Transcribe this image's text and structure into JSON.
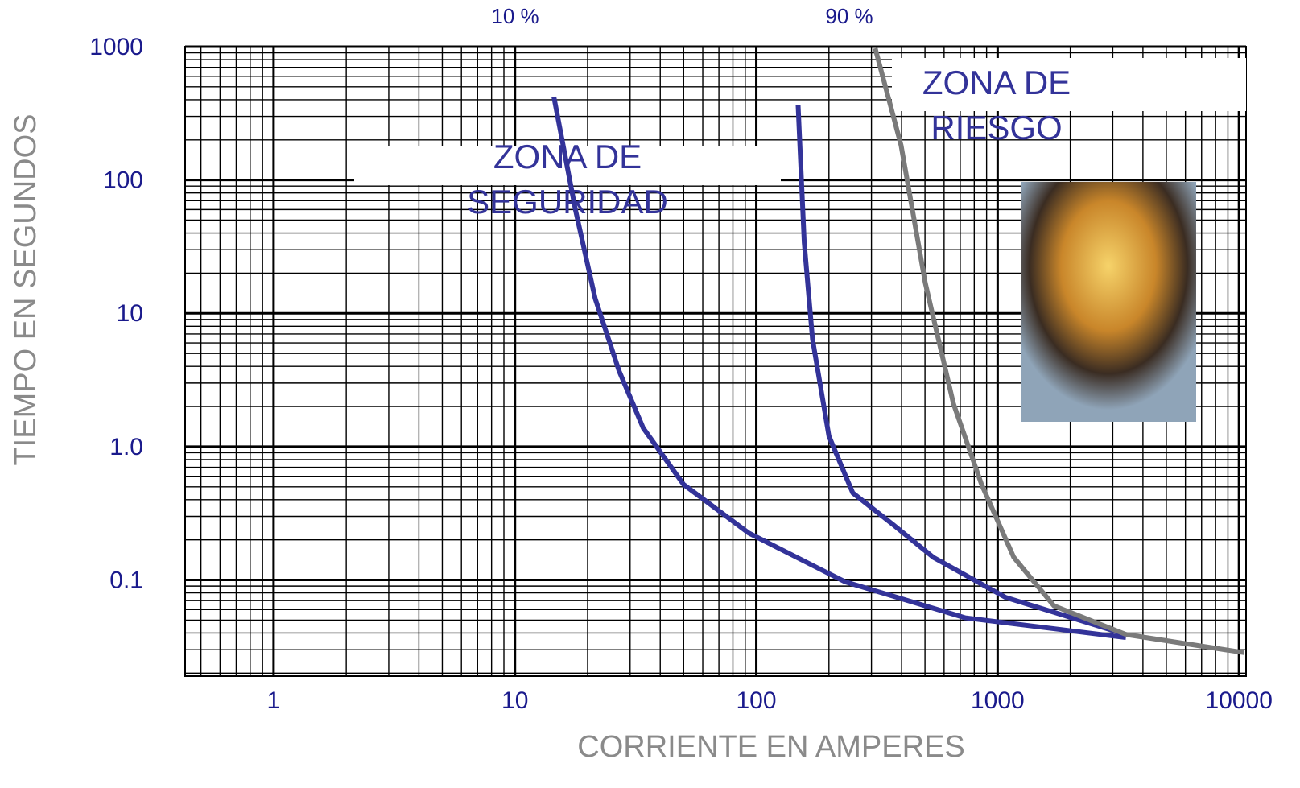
{
  "chart_data": {
    "type": "line",
    "x_label": "CORRIENTE EN AMPERES",
    "y_label": "TIEMPO EN SEGUNDOS",
    "log_x": true,
    "log_y": true,
    "grid": true,
    "xlim": [
      0.43,
      10700
    ],
    "ylim": [
      0.019,
      1000
    ],
    "xticks": [
      1,
      10,
      100,
      1000,
      10000
    ],
    "yticks": [
      0.1,
      {
        "value": 1,
        "label": "1.0"
      },
      10,
      100,
      1000
    ],
    "annotations": [
      "10 %",
      "90 %"
    ],
    "zones": [
      {
        "lines": [
          "ZONA DE",
          "SEGURIDAD"
        ]
      },
      {
        "lines": [
          "ZONA DE",
          "RIESGO"
        ]
      }
    ],
    "series": [
      {
        "color": "#333399",
        "x": [
          14.5,
          17.8,
          21.5,
          27,
          34,
          50,
          93,
          233,
          735,
          3400
        ],
        "values": [
          420,
          60,
          12.9,
          3.7,
          1.38,
          0.52,
          0.225,
          0.097,
          0.052,
          0.037
        ]
      },
      {
        "color": "#333399",
        "x": [
          149,
          158,
          171,
          200,
          251,
          369,
          541,
          1080,
          3400
        ],
        "values": [
          366,
          34,
          6.4,
          1.2,
          0.45,
          0.26,
          0.148,
          0.074,
          0.039
        ]
      },
      {
        "color": "#7a7a7a",
        "x": [
          311,
          398,
          501,
          656,
          858,
          1166,
          1711,
          3400,
          10500
        ],
        "values": [
          973,
          182,
          17,
          2.1,
          0.52,
          0.148,
          0.064,
          0.039,
          0.0285
        ]
      }
    ]
  }
}
